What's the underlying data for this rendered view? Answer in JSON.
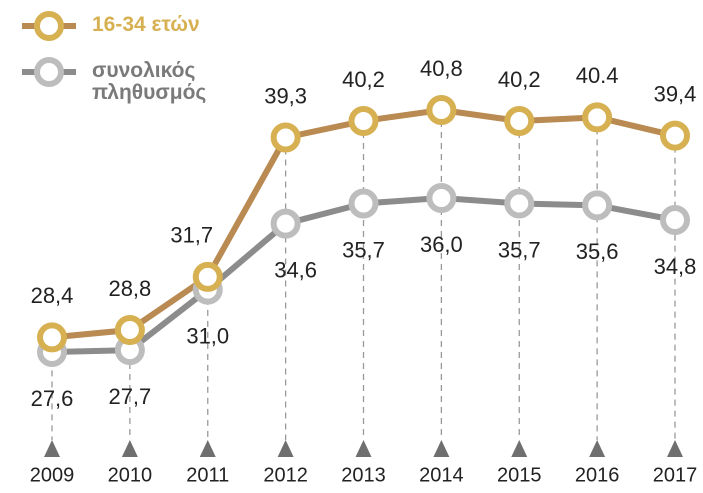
{
  "chart_data": {
    "type": "line",
    "categories": [
      "2009",
      "2010",
      "2011",
      "2012",
      "2013",
      "2014",
      "2015",
      "2016",
      "2017"
    ],
    "series": [
      {
        "name": "16-34 ετών",
        "color": "#b98a52",
        "marker_color": "#d6b051",
        "values": [
          28.4,
          28.8,
          31.7,
          39.3,
          40.2,
          40.8,
          40.2,
          40.4,
          39.4
        ],
        "value_labels": [
          "28,4",
          "28,8",
          "31,7",
          "39,3",
          "40,2",
          "40,8",
          "40,2",
          "40.4",
          "39,4"
        ]
      },
      {
        "name": "συνολικός πληθυσμός",
        "color": "#8c8c8c",
        "marker_color": "#bdbdbd",
        "values": [
          27.6,
          27.7,
          31.0,
          34.6,
          35.7,
          36.0,
          35.7,
          35.6,
          34.8
        ],
        "value_labels": [
          "27,6",
          "27,7",
          "31,0",
          "34,6",
          "35,7",
          "36,0",
          "35,7",
          "35,6",
          "34,8"
        ]
      }
    ],
    "legend": "top-left"
  }
}
